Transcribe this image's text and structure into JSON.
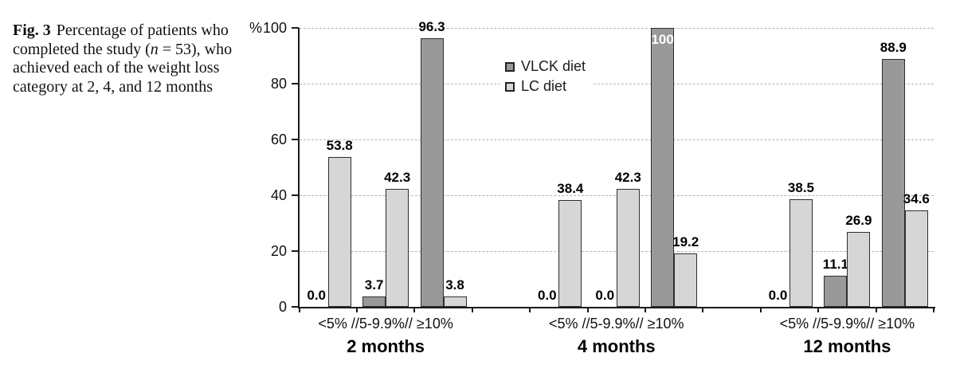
{
  "caption": {
    "label": "Fig. 3",
    "before_n": "Percentage of patients who completed the study (",
    "n": "n",
    "after_n": " = 53), who achieved each of the weight loss category at 2, 4, and 12 months"
  },
  "chart_data": {
    "type": "bar",
    "y_axis": {
      "unit": "%",
      "ticks": [
        0,
        20,
        40,
        60,
        80,
        100
      ],
      "max": 100
    },
    "grid": "dashed-horizontal",
    "legend_position": "top-center",
    "legend": [
      {
        "name": "VLCK diet",
        "color": "#999999"
      },
      {
        "name": "LC diet",
        "color": "#d6d6d6"
      }
    ],
    "categories": [
      "<5%",
      "5-9.9%",
      "≥10%"
    ],
    "category_axis_label": "<5% //5-9.9%// ≥10%",
    "groups": [
      {
        "label": "2 months",
        "series": [
          {
            "name": "VLCK diet",
            "values": [
              0.0,
              3.7,
              96.3
            ],
            "labels": [
              "0.0",
              "3.7",
              "96.3"
            ]
          },
          {
            "name": "LC diet",
            "values": [
              53.8,
              42.3,
              3.8
            ],
            "labels": [
              "53.8",
              "42.3",
              "3.8"
            ]
          }
        ]
      },
      {
        "label": "4 months",
        "series": [
          {
            "name": "VLCK diet",
            "values": [
              0.0,
              0.0,
              100
            ],
            "labels": [
              "0.0",
              "0.0",
              "100"
            ]
          },
          {
            "name": "LC diet",
            "values": [
              38.4,
              42.3,
              19.2
            ],
            "labels": [
              "38.4",
              "42.3",
              "19.2"
            ]
          }
        ]
      },
      {
        "label": "12 months",
        "series": [
          {
            "name": "VLCK diet",
            "values": [
              0.0,
              11.1,
              88.9
            ],
            "labels": [
              "0.0",
              "11.1",
              "88.9"
            ]
          },
          {
            "name": "LC diet",
            "values": [
              38.5,
              26.9,
              34.6
            ],
            "labels": [
              "38.5",
              "26.9",
              "34.6"
            ]
          }
        ]
      }
    ],
    "colors": {
      "bar_border": "#2e2e2e",
      "grid_color": "#b4b4b4",
      "axis_color": "#1a1a1a"
    }
  }
}
